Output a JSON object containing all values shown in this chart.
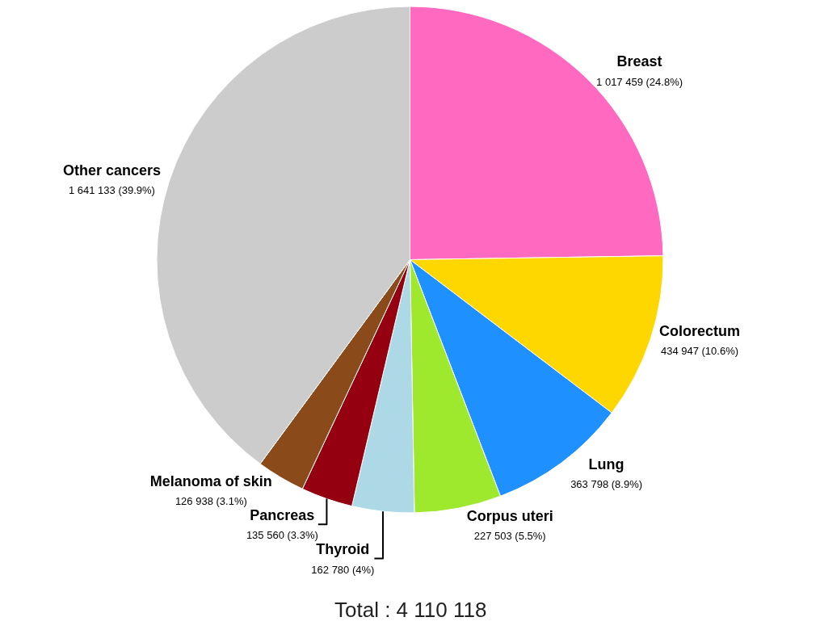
{
  "chart_data": {
    "type": "pie",
    "categories": [
      "Breast",
      "Colorectum",
      "Lung",
      "Corpus uteri",
      "Thyroid",
      "Pancreas",
      "Melanoma of skin",
      "Other cancers"
    ],
    "values": [
      1017459,
      434947,
      363798,
      227503,
      162780,
      135560,
      126938,
      1641133
    ],
    "value_labels": [
      "1 017 459 (24.8%)",
      "434 947 (10.6%)",
      "363 798 (8.9%)",
      "227 503 (5.5%)",
      "162 780 (4%)",
      "135 560 (3.3%)",
      "126 938 (3.1%)",
      "1 641 133 (39.9%)"
    ],
    "colors": [
      "#ff69c0",
      "#ffd700",
      "#1e90ff",
      "#9ee82e",
      "#add8e6",
      "#940010",
      "#8b4a1a",
      "#cccccc"
    ],
    "annotations": [
      "Total : 4 110 118"
    ],
    "legend": false
  }
}
